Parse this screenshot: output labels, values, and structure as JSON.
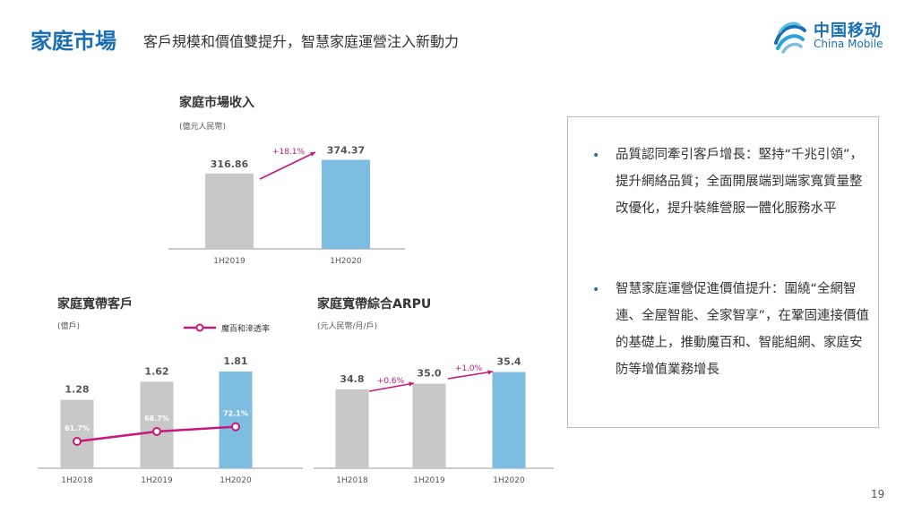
{
  "header": {
    "title": "家庭市場",
    "subtitle": "客戶規模和價值雙提升，智慧家庭運營注入新動力"
  },
  "logo": {
    "cn": "中国移动",
    "en": "China Mobile"
  },
  "charts": {
    "revenue": {
      "title": "家庭市場收入",
      "unit": "(億元人民幣)",
      "growth": "+18.1%"
    },
    "broadband": {
      "title": "家庭寬帶客戶",
      "unit": "(億戶)",
      "legend": "魔百和滲透率"
    },
    "arpu": {
      "title": "家庭寬帶綜合ARPU",
      "unit": "(元人民幣/月/戶)",
      "growth1": "+0.6%",
      "growth2": "+1.0%"
    }
  },
  "chart_data": [
    {
      "type": "bar",
      "title": "家庭市場收入",
      "categories": [
        "1H2019",
        "1H2020"
      ],
      "values": [
        316.86,
        374.37
      ],
      "labels": [
        "316.86",
        "374.37"
      ],
      "annotation": "+18.1%",
      "colors": [
        "#c8c8c8",
        "#7dbde2"
      ]
    },
    {
      "type": "bar",
      "title": "家庭寬帶客戶",
      "categories": [
        "1H2018",
        "1H2019",
        "1H2020"
      ],
      "values": [
        1.28,
        1.62,
        1.81
      ],
      "labels": [
        "1.28",
        "1.62",
        "1.81"
      ],
      "colors": [
        "#c8c8c8",
        "#c8c8c8",
        "#7dbde2"
      ],
      "line": {
        "name": "魔百和滲透率",
        "values": [
          61.7,
          68.7,
          72.1
        ],
        "labels": [
          "61.7%",
          "68.7%",
          "72.1%"
        ],
        "color": "#c8177d"
      }
    },
    {
      "type": "bar",
      "title": "家庭寬帶綜合ARPU",
      "categories": [
        "1H2018",
        "1H2019",
        "1H2020"
      ],
      "values": [
        34.8,
        35.0,
        35.4
      ],
      "labels": [
        "34.8",
        "35.0",
        "35.4"
      ],
      "annotations": [
        "+0.6%",
        "+1.0%"
      ],
      "colors": [
        "#c8c8c8",
        "#c8c8c8",
        "#7dbde2"
      ]
    }
  ],
  "bullets": [
    {
      "text": "品質認同牽引客戶增長：堅持“千兆引領”，提升網絡品質；全面開展端到端家寬質量整改優化，提升裝維營服一體化服務水平"
    },
    {
      "text": "智慧家庭運營促進價值提升：圍繞“全網智連、全屋智能、全家智享”，在鞏固連接價值的基礎上，推動魔百和、智能組網、家庭安防等增值業務增長"
    }
  ],
  "bullet_symbol": "•",
  "page_number": "19",
  "colors": {
    "accent": "#1a6fb3",
    "bar_gray": "#c8c8c8",
    "bar_blue": "#7dbde2",
    "magenta": "#c8177d"
  }
}
